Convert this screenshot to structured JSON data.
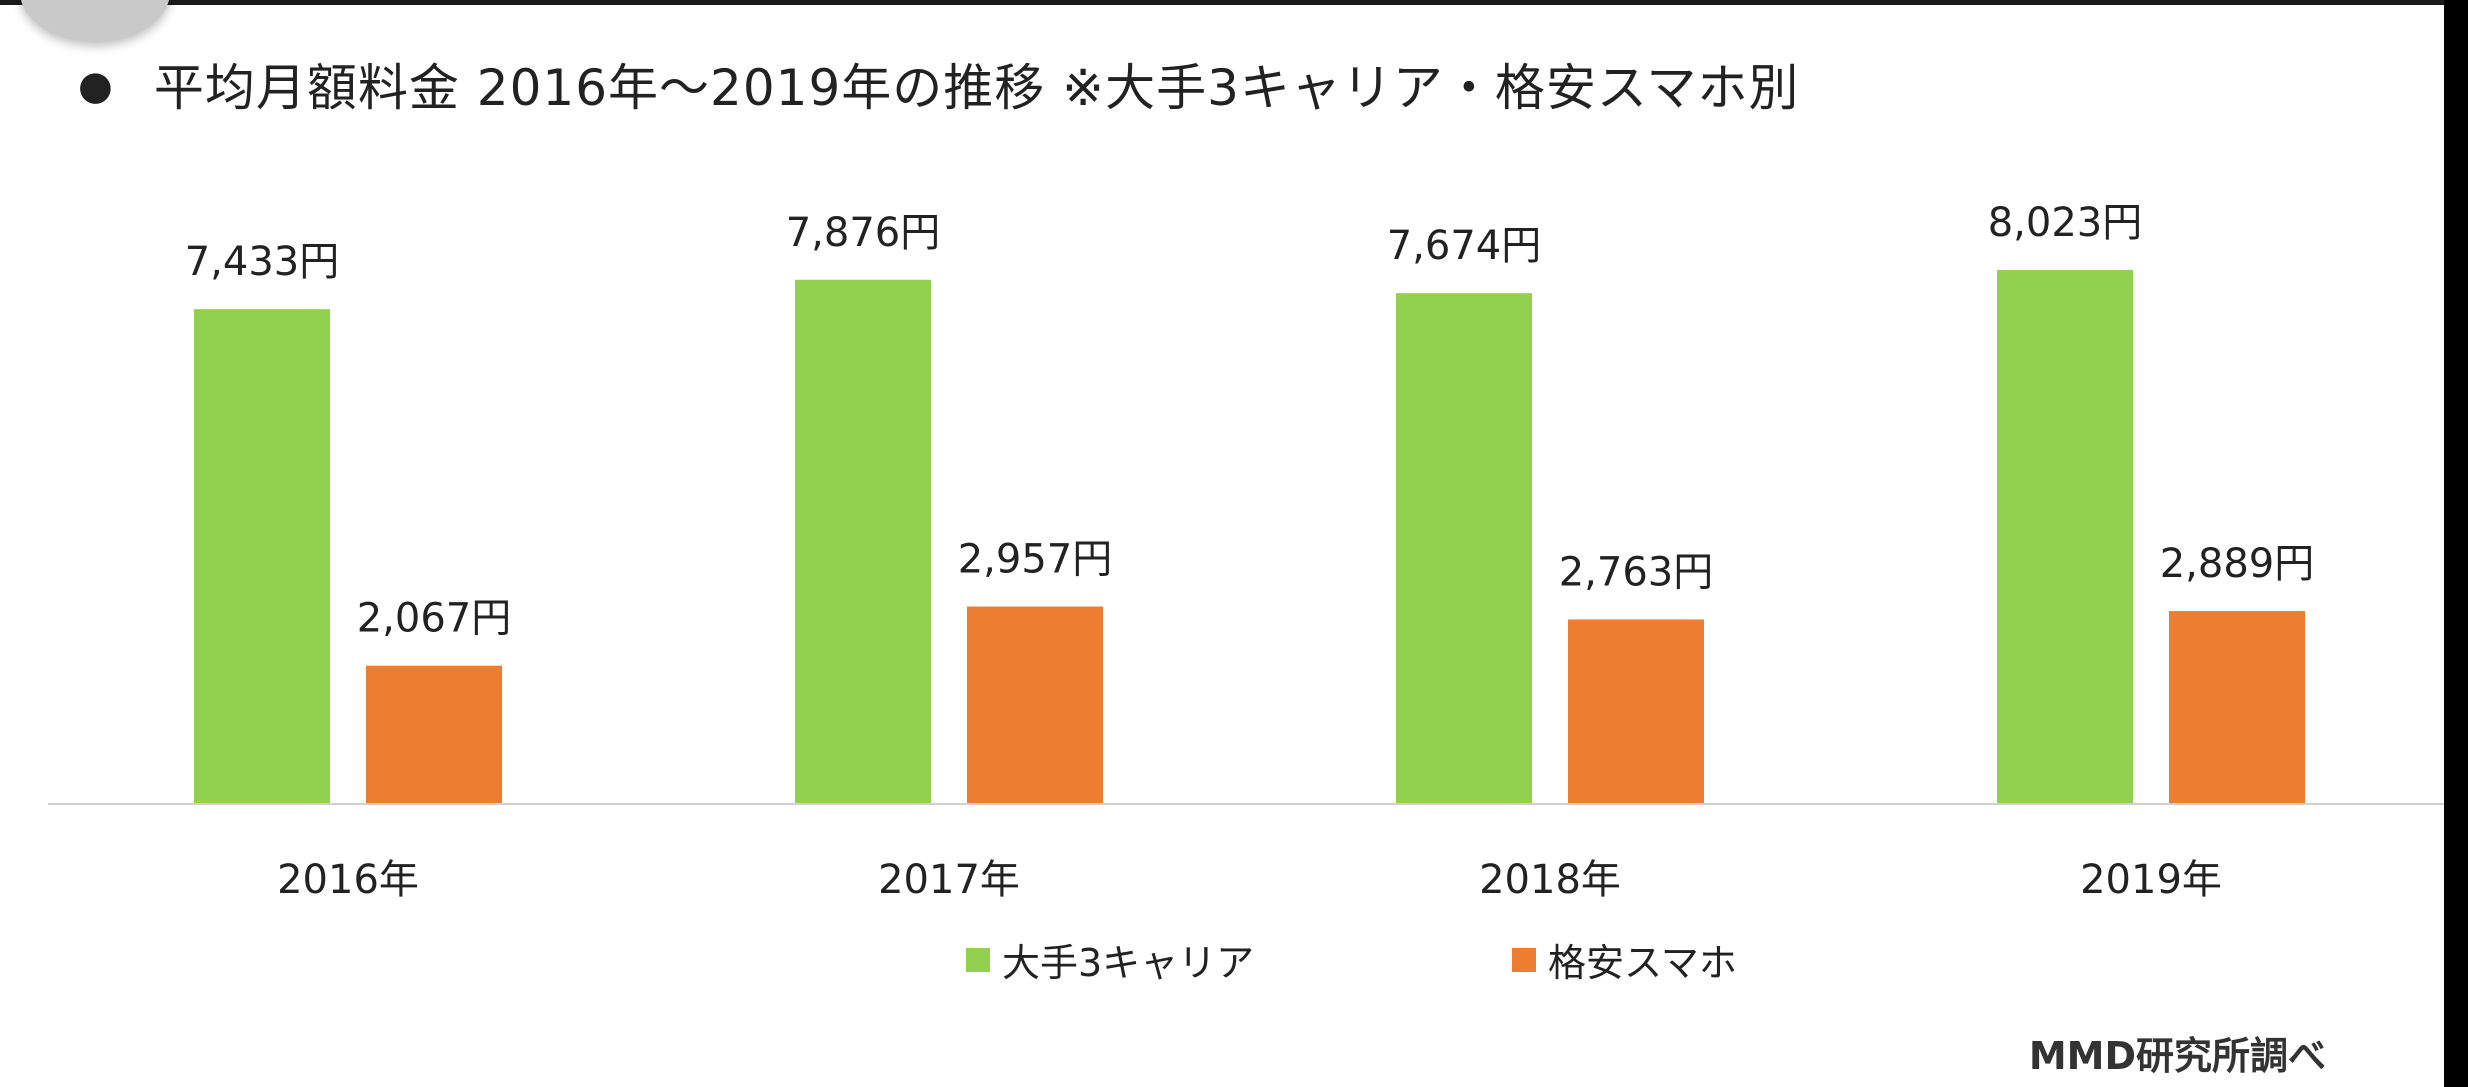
{
  "title": "平均月額料金 2016年～2019年の推移 ※大手3キャリア・格安スマホ別",
  "source": "MMD研究所調べ",
  "colors": {
    "series1": "#92d050",
    "series2": "#ed7d31",
    "axis": "#d0d0d0"
  },
  "chart_data": {
    "type": "bar",
    "categories": [
      "2016年",
      "2017年",
      "2018年",
      "2019年"
    ],
    "series": [
      {
        "name": "大手3キャリア",
        "values": [
          7433,
          7876,
          7674,
          8023
        ],
        "labels": [
          "7,433円",
          "7,876円",
          "7,674円",
          "8,023円"
        ]
      },
      {
        "name": "格安スマホ",
        "values": [
          2067,
          2957,
          2763,
          2889
        ],
        "labels": [
          "2,067円",
          "2,957円",
          "2,763円",
          "2,889円"
        ]
      }
    ],
    "title": "平均月額料金 2016年～2019年の推移 ※大手3キャリア・格安スマホ別",
    "xlabel": "",
    "ylabel": "",
    "ylim": [
      0,
      8023
    ],
    "grid": false,
    "legend": "bottom"
  }
}
